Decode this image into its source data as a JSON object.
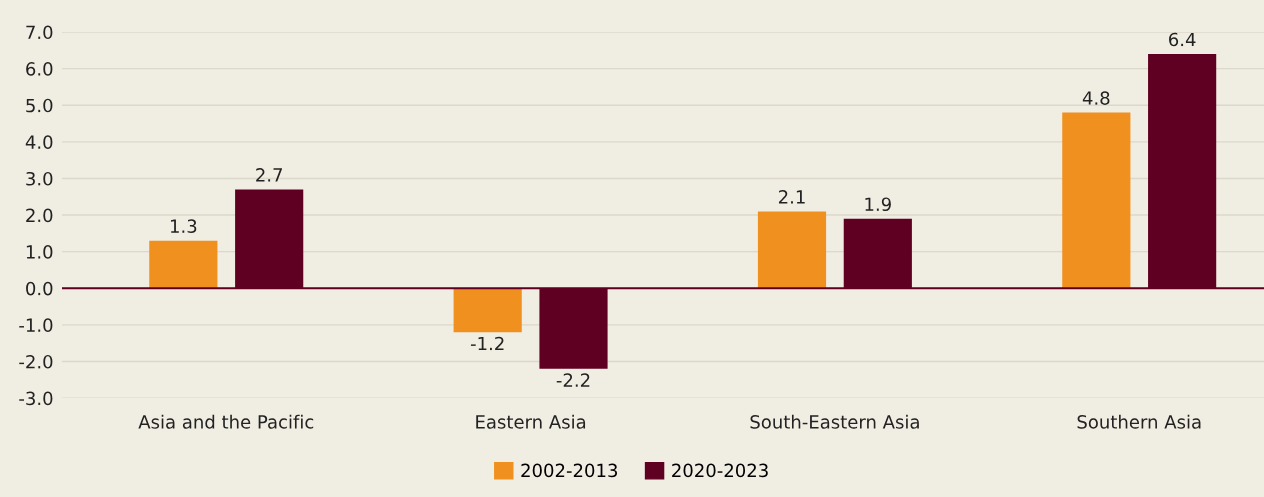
{
  "chart_data": {
    "type": "bar",
    "categories": [
      "Asia and the Pacific",
      "Eastern Asia",
      "South-Eastern Asia",
      "Southern Asia"
    ],
    "series": [
      {
        "name": "2002-2013",
        "color": "#f0901e",
        "values": [
          1.3,
          -1.2,
          2.1,
          4.8
        ]
      },
      {
        "name": "2020-2023",
        "color": "#5f0022",
        "values": [
          2.7,
          -2.2,
          1.9,
          6.4
        ]
      }
    ],
    "ylim": [
      -3.0,
      7.0
    ],
    "yticks": [
      {
        "value": -3,
        "label": "-3.0"
      },
      {
        "value": -2,
        "label": "-2.0"
      },
      {
        "value": -1,
        "label": "-1.0"
      },
      {
        "value": 0,
        "label": "0.0"
      },
      {
        "value": 1,
        "label": "1.0"
      },
      {
        "value": 2,
        "label": "2.0"
      },
      {
        "value": 3,
        "label": "3.0"
      },
      {
        "value": 4,
        "label": "4.0"
      },
      {
        "value": 5,
        "label": "5.0"
      },
      {
        "value": 6,
        "label": "6.0"
      },
      {
        "value": 7,
        "label": "7.0"
      }
    ],
    "ref_lines": [
      {
        "axis": "y",
        "value": 0,
        "color": "#5f0022"
      }
    ],
    "grid": "y",
    "data_labels": true,
    "legend": "bottom"
  }
}
